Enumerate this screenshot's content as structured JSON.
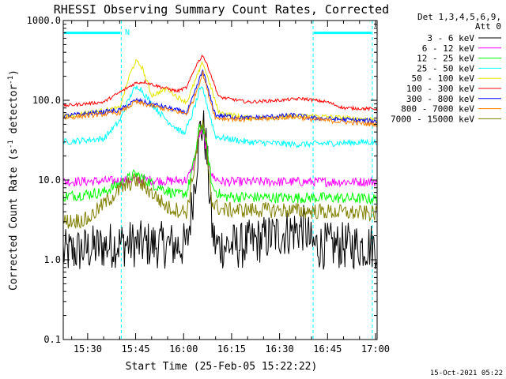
{
  "chart_data": {
    "type": "line",
    "title": "RHESSI Observing Summary Count Rates, Corrected",
    "xlabel": "Start Time (25-Feb-05 15:22:22)",
    "ylabel": "Corrected Count Rate (s⁻¹ detector⁻¹)",
    "ylabel_main": "Corrected Count Rate (s",
    "ylabel_sup1": "-1",
    "ylabel_mid": " detector",
    "ylabel_sup2": "-1",
    "ylabel_end": ")",
    "yscale": "log",
    "ylim": [
      0.1,
      1000
    ],
    "xlim": [
      "15:22:22",
      "17:00:30"
    ],
    "ytick_labels": [
      "0.1",
      "1.0",
      "10.0",
      "100.0",
      "1000.0"
    ],
    "xtick_labels": [
      "15:30",
      "15:45",
      "16:00",
      "16:15",
      "16:30",
      "16:45",
      "17:00"
    ],
    "legend_header": [
      "Det 1,3,4,5,6,9,",
      "Att 0"
    ],
    "legend_position": "outside right",
    "timestamp": "15-Oct-2021 05:22",
    "annotation": "N",
    "grid": false,
    "markers": {
      "night_intervals": [
        [
          "15:22:22",
          "15:40:30"
        ],
        [
          "16:40:30",
          "16:59:00"
        ]
      ],
      "saa_marker_y": 700
    },
    "series": [
      {
        "name": "3 - 6 keV",
        "color": "#000000",
        "noise": 0.3,
        "anchors": [
          [
            "15:22",
            1.2
          ],
          [
            "15:40",
            1.6
          ],
          [
            "16:01",
            1.5
          ],
          [
            "16:02",
            3.0
          ],
          [
            "16:04",
            15
          ],
          [
            "16:05",
            40
          ],
          [
            "16:06",
            48
          ],
          [
            "16:07",
            28
          ],
          [
            "16:09",
            2.2
          ],
          [
            "16:10",
            1.5
          ],
          [
            "16:18",
            1.5
          ],
          [
            "16:28",
            2.0
          ],
          [
            "16:38",
            2.5
          ],
          [
            "16:40",
            1.5
          ],
          [
            "16:59",
            1.5
          ]
        ]
      },
      {
        "name": "6 - 12 keV",
        "color": "#ff00ff",
        "noise": 0.06,
        "anchors": [
          [
            "15:22",
            9.5
          ],
          [
            "15:40",
            9.8
          ],
          [
            "15:45",
            10.2
          ],
          [
            "15:55",
            9.7
          ],
          [
            "16:01",
            10
          ],
          [
            "16:03",
            15
          ],
          [
            "16:05",
            38
          ],
          [
            "16:06",
            42
          ],
          [
            "16:07",
            25
          ],
          [
            "16:09",
            11
          ],
          [
            "16:12",
            9.5
          ],
          [
            "16:59",
            9.5
          ]
        ]
      },
      {
        "name": "12 - 25 keV",
        "color": "#00ff00",
        "noise": 0.07,
        "anchors": [
          [
            "15:22",
            6.2
          ],
          [
            "15:35",
            7.0
          ],
          [
            "15:42",
            10
          ],
          [
            "15:45",
            12
          ],
          [
            "15:50",
            9.0
          ],
          [
            "15:58",
            6.5
          ],
          [
            "16:01",
            7.0
          ],
          [
            "16:03",
            15
          ],
          [
            "16:05",
            45
          ],
          [
            "16:06",
            50
          ],
          [
            "16:07",
            30
          ],
          [
            "16:09",
            8.0
          ],
          [
            "16:12",
            6.2
          ],
          [
            "16:30",
            6.0
          ],
          [
            "16:45",
            6.0
          ],
          [
            "16:59",
            5.8
          ]
        ]
      },
      {
        "name": "25 - 50 keV",
        "color": "#00ffff",
        "noise": 0.04,
        "anchors": [
          [
            "15:22",
            30
          ],
          [
            "15:35",
            33
          ],
          [
            "15:40",
            55
          ],
          [
            "15:44",
            130
          ],
          [
            "15:46",
            150
          ],
          [
            "15:50",
            90
          ],
          [
            "15:55",
            55
          ],
          [
            "16:00",
            38
          ],
          [
            "16:02",
            55
          ],
          [
            "16:05",
            130
          ],
          [
            "16:06",
            140
          ],
          [
            "16:08",
            70
          ],
          [
            "16:10",
            35
          ],
          [
            "16:20",
            30
          ],
          [
            "16:35",
            28
          ],
          [
            "16:59",
            30
          ]
        ]
      },
      {
        "name": "50 - 100 keV",
        "color": "#e6e600",
        "noise": 0.03,
        "anchors": [
          [
            "15:22",
            62
          ],
          [
            "15:40",
            80
          ],
          [
            "15:43",
            200
          ],
          [
            "15:45",
            310
          ],
          [
            "15:47",
            260
          ],
          [
            "15:50",
            115
          ],
          [
            "15:55",
            140
          ],
          [
            "15:58",
            110
          ],
          [
            "16:01",
            95
          ],
          [
            "16:04",
            190
          ],
          [
            "16:06",
            300
          ],
          [
            "16:08",
            170
          ],
          [
            "16:11",
            70
          ],
          [
            "16:20",
            60
          ],
          [
            "16:30",
            62
          ],
          [
            "16:40",
            64
          ],
          [
            "16:50",
            60
          ],
          [
            "16:59",
            58
          ]
        ]
      },
      {
        "name": "100 - 300 keV",
        "color": "#ff0000",
        "noise": 0.02,
        "anchors": [
          [
            "15:22",
            85
          ],
          [
            "15:35",
            95
          ],
          [
            "15:42",
            140
          ],
          [
            "15:45",
            165
          ],
          [
            "15:48",
            170
          ],
          [
            "15:52",
            150
          ],
          [
            "15:58",
            130
          ],
          [
            "16:01",
            145
          ],
          [
            "16:04",
            280
          ],
          [
            "16:06",
            370
          ],
          [
            "16:08",
            240
          ],
          [
            "16:11",
            110
          ],
          [
            "16:20",
            95
          ],
          [
            "16:30",
            100
          ],
          [
            "16:37",
            105
          ],
          [
            "16:45",
            95
          ],
          [
            "16:50",
            80
          ],
          [
            "16:59",
            78
          ]
        ]
      },
      {
        "name": "300 - 800 keV",
        "color": "#0000ff",
        "noise": 0.03,
        "anchors": [
          [
            "15:22",
            63
          ],
          [
            "15:40",
            75
          ],
          [
            "15:45",
            100
          ],
          [
            "15:50",
            90
          ],
          [
            "15:58",
            75
          ],
          [
            "16:01",
            70
          ],
          [
            "16:03",
            110
          ],
          [
            "16:06",
            240
          ],
          [
            "16:08",
            120
          ],
          [
            "16:10",
            65
          ],
          [
            "16:20",
            60
          ],
          [
            "16:35",
            65
          ],
          [
            "16:40",
            60
          ],
          [
            "16:59",
            55
          ]
        ]
      },
      {
        "name": "800 - 7000 keV",
        "color": "#ff8000",
        "noise": 0.03,
        "anchors": [
          [
            "15:22",
            60
          ],
          [
            "15:40",
            70
          ],
          [
            "15:45",
            95
          ],
          [
            "15:50",
            85
          ],
          [
            "15:58",
            72
          ],
          [
            "16:01",
            68
          ],
          [
            "16:03",
            100
          ],
          [
            "16:06",
            220
          ],
          [
            "16:08",
            110
          ],
          [
            "16:10",
            60
          ],
          [
            "16:20",
            57
          ],
          [
            "16:35",
            62
          ],
          [
            "16:40",
            58
          ],
          [
            "16:59",
            50
          ]
        ]
      },
      {
        "name": "7000 - 15000 keV",
        "color": "#808000",
        "noise": 0.1,
        "anchors": [
          [
            "15:22",
            3.0
          ],
          [
            "15:30",
            3.2
          ],
          [
            "15:35",
            5.0
          ],
          [
            "15:40",
            7.5
          ],
          [
            "15:45",
            10
          ],
          [
            "15:50",
            7.0
          ],
          [
            "15:55",
            4.5
          ],
          [
            "16:01",
            4.0
          ],
          [
            "16:03",
            12
          ],
          [
            "16:05",
            40
          ],
          [
            "16:06",
            48
          ],
          [
            "16:07",
            28
          ],
          [
            "16:09",
            5.0
          ],
          [
            "16:12",
            4.2
          ],
          [
            "16:30",
            4.2
          ],
          [
            "16:45",
            4.0
          ],
          [
            "16:59",
            3.8
          ]
        ]
      }
    ]
  }
}
